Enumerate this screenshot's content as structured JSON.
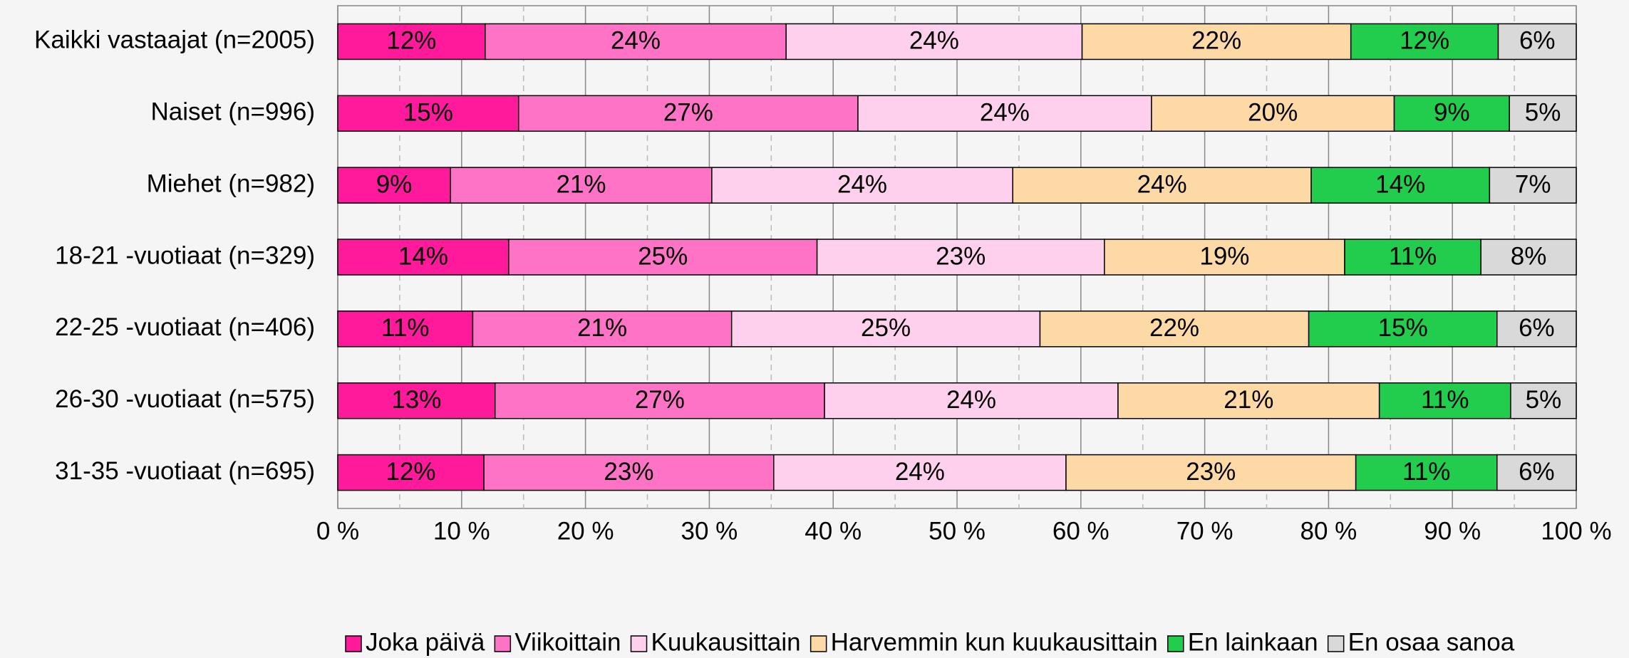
{
  "chart_data": {
    "type": "stacked_barh",
    "categories": [
      "Kaikki vastaajat (n=2005)",
      "Naiset (n=996)",
      "Miehet (n=982)",
      "18-21 -vuotiaat (n=329)",
      "22-25 -vuotiaat (n=406)",
      "26-30 -vuotiaat (n=575)",
      "31-35 -vuotiaat (n=695)"
    ],
    "series": [
      {
        "name": "Joka päivä",
        "color": "#ff1a9c",
        "values": [
          11.9,
          14.6,
          9.1,
          13.8,
          10.9,
          12.7,
          11.8
        ],
        "value_labels": [
          "12%",
          "15%",
          "9%",
          "14%",
          "11%",
          "13%",
          "12%"
        ]
      },
      {
        "name": "Viikoittain",
        "color": "#ff73c6",
        "values": [
          24.3,
          27.4,
          21.1,
          24.9,
          20.9,
          26.6,
          23.4
        ],
        "value_labels": [
          "24%",
          "27%",
          "21%",
          "25%",
          "21%",
          "27%",
          "23%"
        ]
      },
      {
        "name": "Kuukausittain",
        "color": "#ffd0ee",
        "values": [
          23.9,
          23.7,
          24.3,
          23.2,
          24.9,
          23.7,
          23.6
        ],
        "value_labels": [
          "24%",
          "24%",
          "24%",
          "23%",
          "25%",
          "24%",
          "24%"
        ]
      },
      {
        "name": "Harvemmin kun kuukausittain",
        "color": "#fdd9a5",
        "values": [
          21.7,
          19.6,
          24.1,
          19.4,
          21.7,
          21.1,
          23.4
        ],
        "value_labels": [
          "22%",
          "20%",
          "24%",
          "19%",
          "22%",
          "21%",
          "23%"
        ]
      },
      {
        "name": "En lainkaan",
        "color": "#22cc4c",
        "values": [
          11.9,
          9.3,
          14.4,
          11.0,
          15.2,
          10.6,
          11.4
        ],
        "value_labels": [
          "12%",
          "9%",
          "14%",
          "11%",
          "15%",
          "11%",
          "11%"
        ]
      },
      {
        "name": "En osaa sanoa",
        "color": "#d9d9d9",
        "values": [
          6.3,
          5.4,
          7.0,
          7.7,
          6.4,
          5.3,
          6.4
        ],
        "value_labels": [
          "6%",
          "5%",
          "7%",
          "8%",
          "6%",
          "5%",
          "6%"
        ]
      }
    ],
    "xlim": [
      0,
      100
    ],
    "xticks": [
      {
        "value": 0,
        "label": "0 %"
      },
      {
        "value": 10,
        "label": "10 %"
      },
      {
        "value": 20,
        "label": "20 %"
      },
      {
        "value": 30,
        "label": "30 %"
      },
      {
        "value": 40,
        "label": "40 %"
      },
      {
        "value": 50,
        "label": "50 %"
      },
      {
        "value": 60,
        "label": "60 %"
      },
      {
        "value": 70,
        "label": "70 %"
      },
      {
        "value": 80,
        "label": "80 %"
      },
      {
        "value": 90,
        "label": "90 %"
      },
      {
        "value": 100,
        "label": "100 %"
      }
    ],
    "minor_xticks": [
      5,
      15,
      25,
      35,
      45,
      55,
      65,
      75,
      85,
      95
    ],
    "grid": true,
    "legend": "bottom"
  }
}
